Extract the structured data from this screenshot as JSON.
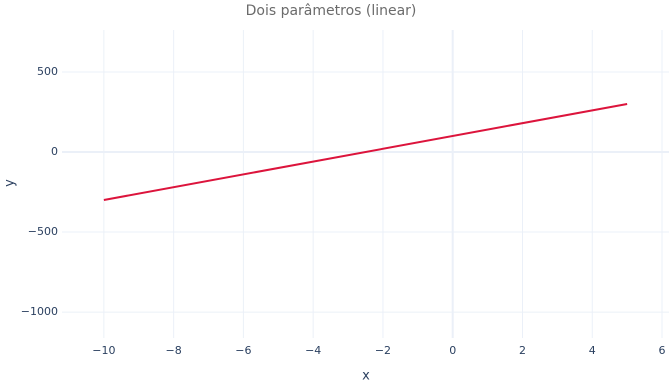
{
  "chart_data": {
    "type": "line",
    "title": "Dois parâmetros (linear)",
    "x_label": "x",
    "y_label": "y",
    "x": [
      -10,
      5
    ],
    "series": [
      {
        "name": "y",
        "color": "#dc143c",
        "values": [
          -300,
          300
        ]
      }
    ],
    "xlim": [
      -11.2,
      6.2
    ],
    "xticks": [
      {
        "value": -10,
        "label": "−10"
      },
      {
        "value": -8,
        "label": "−8"
      },
      {
        "value": -6,
        "label": "−6"
      },
      {
        "value": -4,
        "label": "−4"
      },
      {
        "value": -2,
        "label": "−2"
      },
      0,
      2,
      4,
      6
    ],
    "ylim": [
      -1162,
      762
    ],
    "yticks": [
      {
        "value": -1000,
        "label": "−1000"
      },
      {
        "value": -500,
        "label": "−500"
      },
      0,
      500
    ],
    "grid": true
  }
}
